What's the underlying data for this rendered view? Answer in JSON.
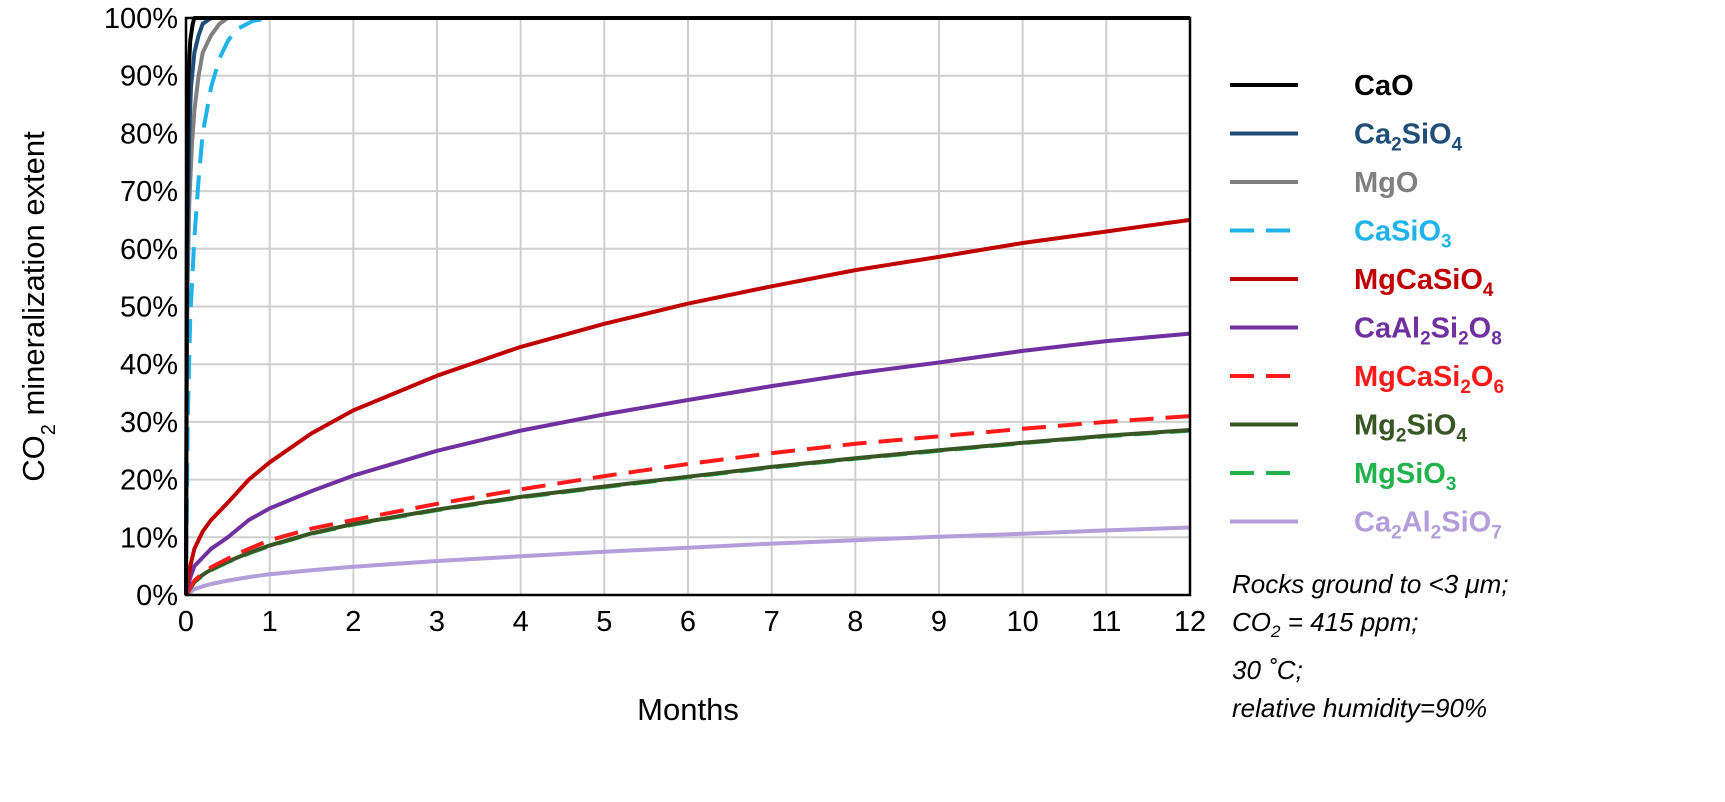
{
  "chart_data": {
    "type": "line",
    "xlabel": "Months",
    "ylabel_parts": [
      "CO",
      "2",
      " mineralization extent"
    ],
    "xlim": [
      0,
      12
    ],
    "ylim": [
      0,
      100
    ],
    "x_ticks": [
      "0",
      "1",
      "2",
      "3",
      "4",
      "5",
      "6",
      "7",
      "8",
      "9",
      "10",
      "11",
      "12"
    ],
    "y_ticks": [
      "0%",
      "10%",
      "20%",
      "30%",
      "40%",
      "50%",
      "60%",
      "70%",
      "80%",
      "90%",
      "100%"
    ],
    "grid": true,
    "legend_position": "right",
    "series": [
      {
        "name": "CaO",
        "parts": [
          [
            "CaO",
            false
          ]
        ],
        "color": "#000000",
        "dash": false,
        "x": [
          0,
          0.01,
          0.02,
          0.03,
          0.05,
          0.08,
          0.1,
          0.15,
          0.2,
          0.3,
          12
        ],
        "y": [
          0,
          60,
          80,
          90,
          96,
          99,
          100,
          100,
          100,
          100,
          100
        ]
      },
      {
        "name": "Ca2SiO4",
        "parts": [
          [
            "Ca",
            false
          ],
          [
            "2",
            true
          ],
          [
            "SiO",
            false
          ],
          [
            "4",
            true
          ]
        ],
        "color": "#1f4e79",
        "dash": false,
        "x": [
          0,
          0.01,
          0.02,
          0.04,
          0.06,
          0.1,
          0.15,
          0.2,
          0.3,
          0.4,
          12
        ],
        "y": [
          0,
          45,
          65,
          80,
          88,
          94,
          97,
          99,
          100,
          100,
          100
        ]
      },
      {
        "name": "MgO",
        "parts": [
          [
            "MgO",
            false
          ]
        ],
        "color": "#808080",
        "dash": false,
        "x": [
          0,
          0.01,
          0.02,
          0.04,
          0.07,
          0.1,
          0.15,
          0.2,
          0.3,
          0.4,
          0.5,
          0.7,
          12
        ],
        "y": [
          0,
          40,
          55,
          68,
          78,
          84,
          90,
          94,
          97,
          99,
          100,
          100,
          100
        ]
      },
      {
        "name": "CaSiO3",
        "parts": [
          [
            "CaSiO",
            false
          ],
          [
            "3",
            true
          ]
        ],
        "color": "#1eb3ea",
        "dash": true,
        "x": [
          0,
          0.02,
          0.05,
          0.1,
          0.15,
          0.2,
          0.3,
          0.4,
          0.5,
          0.6,
          0.8,
          1.0,
          1.2,
          12
        ],
        "y": [
          0,
          30,
          48,
          62,
          72,
          80,
          88,
          93,
          96,
          98,
          99.5,
          100,
          100,
          100
        ]
      },
      {
        "name": "MgCaSiO4",
        "parts": [
          [
            "MgCaSiO",
            false
          ],
          [
            "4",
            true
          ]
        ],
        "color": "#c00000",
        "dash": false,
        "x": [
          0,
          0.05,
          0.1,
          0.2,
          0.3,
          0.5,
          0.75,
          1,
          1.5,
          2,
          3,
          4,
          5,
          6,
          7,
          8,
          9,
          10,
          11,
          12
        ],
        "y": [
          0,
          5,
          8,
          11,
          13,
          16,
          20,
          23,
          28,
          32,
          38,
          43,
          47,
          50.5,
          53.5,
          56.3,
          58.6,
          61,
          63,
          65
        ]
      },
      {
        "name": "CaAl2Si2O8",
        "parts": [
          [
            "CaAl",
            false
          ],
          [
            "2",
            true
          ],
          [
            "Si",
            false
          ],
          [
            "2",
            true
          ],
          [
            "O",
            false
          ],
          [
            "8",
            true
          ]
        ],
        "color": "#7030a0",
        "dash": false,
        "x": [
          0,
          0.05,
          0.1,
          0.2,
          0.3,
          0.5,
          0.75,
          1,
          1.5,
          2,
          3,
          4,
          5,
          6,
          7,
          8,
          9,
          10,
          11,
          12
        ],
        "y": [
          0,
          3,
          5,
          6.5,
          8,
          10,
          13,
          15,
          18,
          20.7,
          25,
          28.5,
          31.3,
          33.8,
          36.2,
          38.4,
          40.3,
          42.3,
          44,
          45.3
        ]
      },
      {
        "name": "MgCaSi2O6",
        "parts": [
          [
            "MgCaSi",
            false
          ],
          [
            "2",
            true
          ],
          [
            "O",
            false
          ],
          [
            "6",
            true
          ]
        ],
        "color": "#ff1a1a",
        "dash": true,
        "x": [
          0,
          0.1,
          0.2,
          0.3,
          0.5,
          0.75,
          1,
          1.5,
          2,
          3,
          4,
          5,
          6,
          7,
          8,
          9,
          10,
          11,
          12
        ],
        "y": [
          0,
          2.5,
          3.8,
          4.8,
          6.3,
          8,
          9.5,
          11.5,
          13,
          15.8,
          18.3,
          20.6,
          22.7,
          24.6,
          26.2,
          27.5,
          28.8,
          30,
          31
        ]
      },
      {
        "name": "Mg2SiO4",
        "parts": [
          [
            "Mg",
            false
          ],
          [
            "2",
            true
          ],
          [
            "SiO",
            false
          ],
          [
            "4",
            true
          ]
        ],
        "color": "#375623",
        "dash": false,
        "x": [
          0,
          0.1,
          0.2,
          0.3,
          0.5,
          0.75,
          1,
          1.5,
          2,
          3,
          4,
          5,
          6,
          7,
          8,
          9,
          10,
          11,
          12
        ],
        "y": [
          0,
          2.3,
          3.5,
          4.4,
          5.8,
          7.3,
          8.6,
          10.7,
          12.3,
          14.8,
          17,
          18.8,
          20.5,
          22.2,
          23.7,
          25.1,
          26.4,
          27.6,
          28.6
        ]
      },
      {
        "name": "MgSiO3",
        "parts": [
          [
            "MgSiO",
            false
          ],
          [
            "3",
            true
          ]
        ],
        "color": "#22b24c",
        "dash": true,
        "x": [
          0,
          0.1,
          0.2,
          0.3,
          0.5,
          0.75,
          1,
          1.5,
          2,
          3,
          4,
          5,
          6,
          7,
          8,
          9,
          10,
          11,
          12
        ],
        "y": [
          0,
          2.2,
          3.4,
          4.3,
          5.7,
          7.2,
          8.5,
          10.6,
          12.2,
          14.7,
          16.9,
          18.7,
          20.4,
          22.1,
          23.6,
          25,
          26.3,
          27.5,
          28.5
        ]
      },
      {
        "name": "Ca2Al2SiO7",
        "parts": [
          [
            "Ca",
            false
          ],
          [
            "2",
            true
          ],
          [
            "Al",
            false
          ],
          [
            "2",
            true
          ],
          [
            "SiO",
            false
          ],
          [
            "7",
            true
          ]
        ],
        "color": "#b39ddb",
        "dash": false,
        "x": [
          0,
          0.1,
          0.2,
          0.3,
          0.5,
          0.75,
          1,
          1.5,
          2,
          3,
          4,
          5,
          6,
          7,
          8,
          9,
          10,
          11,
          12
        ],
        "y": [
          0,
          1,
          1.5,
          1.9,
          2.5,
          3.1,
          3.6,
          4.3,
          4.9,
          5.9,
          6.7,
          7.5,
          8.2,
          8.9,
          9.5,
          10.1,
          10.6,
          11.2,
          11.7
        ]
      }
    ]
  },
  "note": {
    "line1": "Rocks ground to <3 μm;",
    "line2_pre": "CO",
    "line2_sub": "2",
    "line2_post": " = 415 ppm;",
    "line3": "30 ˚C;",
    "line4": "relative humidity=90%"
  }
}
